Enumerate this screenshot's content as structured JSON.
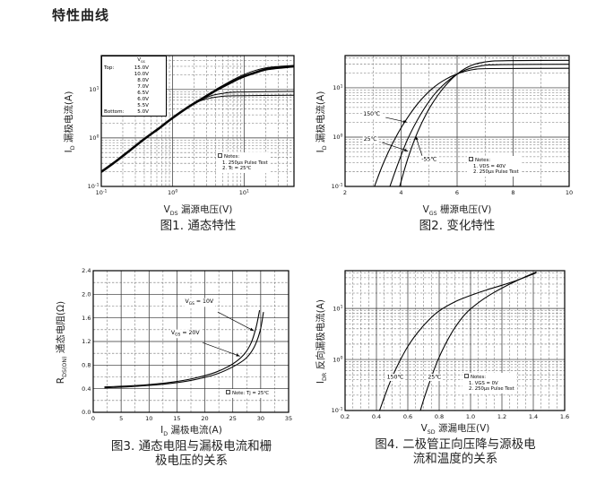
{
  "page": {
    "title": "特性曲线"
  },
  "chart_data": [
    {
      "type": "line",
      "title": "图1. 通态特性",
      "title_lines": [
        "图1. 通态特性"
      ],
      "xlabel": "VDS 漏源电压(V)",
      "xlabel_parts": {
        "pre": "V",
        "sub": "DS",
        "post": " 漏源电压(V)"
      },
      "ylabel": "ID 漏极电流(A)",
      "ylabel_parts": {
        "pre": "I",
        "sub": "D",
        "post": " 漏极电流(A)"
      },
      "x_scale": "log",
      "y_scale": "log",
      "xlim": [
        0.1,
        50
      ],
      "ylim": [
        0.1,
        50
      ],
      "x_tick_exps": [
        -1,
        0,
        1
      ],
      "y_tick_exps": [
        -1,
        0,
        1
      ],
      "grid": "log major solid, log minor dashed",
      "legend": {
        "header_parts": {
          "pre": "V",
          "sub": "GS"
        },
        "rows": [
          [
            "Top:",
            "15.0V"
          ],
          [
            "",
            "10.0V"
          ],
          [
            "",
            "8.0V"
          ],
          [
            "",
            "7.0V"
          ],
          [
            "",
            "6.5V"
          ],
          [
            "",
            "6.0V"
          ],
          [
            "",
            "5.5V"
          ],
          [
            "Bottom:",
            "5.0V"
          ]
        ]
      },
      "notes": [
        "Notes:",
        "1. 250μs Pulse Test",
        "2. Tc = 25℃"
      ],
      "series": [
        {
          "name": "VGS = 15.0V–6.0V (overlapping band)",
          "width": 2.6,
          "points": [
            [
              0.1,
              0.2
            ],
            [
              0.16,
              0.33
            ],
            [
              0.25,
              0.55
            ],
            [
              0.4,
              0.95
            ],
            [
              0.65,
              1.6
            ],
            [
              1.0,
              2.6
            ],
            [
              1.6,
              4.2
            ],
            [
              2.5,
              6.3
            ],
            [
              4,
              9.5
            ],
            [
              6,
              13
            ],
            [
              9,
              17.5
            ],
            [
              14,
              22
            ],
            [
              22,
              26.5
            ],
            [
              50,
              30
            ]
          ]
        },
        {
          "name": "VGS = 15.0V (upper edge)",
          "width": 1,
          "points": [
            [
              4,
              10
            ],
            [
              6,
              14
            ],
            [
              9,
              19
            ],
            [
              14,
              24.5
            ],
            [
              22,
              28.5
            ],
            [
              50,
              31.5
            ]
          ]
        },
        {
          "name": "VGS = 5.5V",
          "width": 1,
          "points": [
            [
              2.5,
              6.1
            ],
            [
              3.5,
              7.5
            ],
            [
              5,
              8.3
            ],
            [
              8,
              8.8
            ],
            [
              50,
              9.1
            ]
          ]
        },
        {
          "name": "VGS = 5.0V",
          "width": 1,
          "points": [
            [
              2.2,
              5.5
            ],
            [
              3,
              6.4
            ],
            [
              4.5,
              7.1
            ],
            [
              7,
              7.4
            ],
            [
              50,
              7.6
            ]
          ]
        }
      ],
      "annotations": []
    },
    {
      "type": "line",
      "title": "图2. 变化特性",
      "title_lines": [
        "图2. 变化特性"
      ],
      "xlabel": "VGS 栅源电压(V)",
      "xlabel_parts": {
        "pre": "V",
        "sub": "GS",
        "post": " 栅源电压(V)"
      },
      "ylabel": "ID 漏极电流(A)",
      "ylabel_parts": {
        "pre": "I",
        "sub": "D",
        "post": " 漏极电流(A)"
      },
      "x_scale": "linear",
      "y_scale": "log",
      "xlim": [
        2,
        10
      ],
      "x_step": 2,
      "x_minor": 1,
      "ylim": [
        0.1,
        45
      ],
      "y_tick_exps": [
        -1,
        0,
        1
      ],
      "x_ticks": [
        {
          "v": 2,
          "l": "2"
        },
        {
          "v": 4,
          "l": "4"
        },
        {
          "v": 6,
          "l": "6"
        },
        {
          "v": 8,
          "l": "8"
        },
        {
          "v": 10,
          "l": "10"
        }
      ],
      "notes": [
        "Notes:",
        "1. VDS = 40V",
        "2. 250μs Pulse Test"
      ],
      "series": [
        {
          "name": "150℃",
          "width": 1.1,
          "points": [
            [
              3.05,
              0.1
            ],
            [
              3.35,
              0.28
            ],
            [
              3.7,
              0.75
            ],
            [
              4.1,
              1.9
            ],
            [
              4.6,
              4.8
            ],
            [
              5.1,
              9.5
            ],
            [
              5.6,
              15
            ],
            [
              6.1,
              20
            ],
            [
              6.6,
              23.5
            ],
            [
              7.2,
              24.5
            ],
            [
              10,
              24.8
            ]
          ]
        },
        {
          "name": "25℃",
          "width": 1.1,
          "points": [
            [
              3.6,
              0.1
            ],
            [
              3.9,
              0.3
            ],
            [
              4.25,
              0.95
            ],
            [
              4.7,
              2.9
            ],
            [
              5.2,
              7.5
            ],
            [
              5.75,
              15
            ],
            [
              6.3,
              23
            ],
            [
              6.9,
              28
            ],
            [
              7.6,
              29.5
            ],
            [
              10,
              30
            ]
          ]
        },
        {
          "name": "-55℃",
          "width": 1.1,
          "points": [
            [
              3.95,
              0.1
            ],
            [
              4.25,
              0.38
            ],
            [
              4.6,
              1.3
            ],
            [
              5.05,
              4.2
            ],
            [
              5.55,
              10.5
            ],
            [
              6.05,
              20
            ],
            [
              6.55,
              29
            ],
            [
              7.1,
              34
            ],
            [
              7.8,
              35.5
            ],
            [
              10,
              36
            ]
          ]
        }
      ],
      "annotations": [
        {
          "text": "150℃",
          "tx": 2.95,
          "ty": 2.7,
          "arrow": [
            3.45,
            2.5,
            4.22,
            2.0
          ]
        },
        {
          "text": "25℃",
          "tx": 2.9,
          "ty": 0.85,
          "arrow": [
            3.32,
            0.78,
            4.25,
            0.52
          ]
        },
        {
          "text": "-55℃",
          "tx": 5.0,
          "ty": 0.33,
          "arrow": [
            4.75,
            0.42,
            4.52,
            1.05
          ]
        }
      ]
    },
    {
      "type": "line",
      "title": "图3. 通态电阻与漏极电流和栅极电压的关系",
      "title_lines": [
        "图3. 通态电阻与漏极电流和栅",
        "极电压的关系"
      ],
      "xlabel": "ID 漏极电流(A)",
      "xlabel_parts": {
        "pre": "I",
        "sub": "D",
        "post": " 漏极电流(A)"
      },
      "ylabel": "RDS(ON) 通态电阻(Ω)",
      "ylabel_parts": {
        "pre": "R",
        "sub": "DS(ON)",
        "post": " 通态电阻(Ω)"
      },
      "x_scale": "linear",
      "y_scale": "linear",
      "xlim": [
        0,
        35
      ],
      "x_step": 5,
      "x_minor": 2.5,
      "ylim": [
        0,
        2.4
      ],
      "y_step": 0.4,
      "y_minor": 0.2,
      "x_ticks": [
        {
          "v": 0,
          "l": "0"
        },
        {
          "v": 5,
          "l": "5"
        },
        {
          "v": 10,
          "l": "10"
        },
        {
          "v": 15,
          "l": "15"
        },
        {
          "v": 20,
          "l": "20"
        },
        {
          "v": 25,
          "l": "25"
        },
        {
          "v": 30,
          "l": "30"
        },
        {
          "v": 35,
          "l": "35"
        }
      ],
      "y_ticks": [
        {
          "v": 0,
          "l": "0.0"
        },
        {
          "v": 0.4,
          "l": "0.4"
        },
        {
          "v": 0.8,
          "l": "0.8"
        },
        {
          "v": 1.2,
          "l": "1.2"
        },
        {
          "v": 1.6,
          "l": "1.6"
        },
        {
          "v": 2.0,
          "l": "2.0"
        },
        {
          "v": 2.4,
          "l": "2.4"
        }
      ],
      "notes": [
        "Note: Tj = 25℃"
      ],
      "series": [
        {
          "name": "VGS = 10V",
          "width": 1.1,
          "points": [
            [
              2,
              0.43
            ],
            [
              6,
              0.445
            ],
            [
              10,
              0.47
            ],
            [
              14,
              0.51
            ],
            [
              18,
              0.575
            ],
            [
              22,
              0.68
            ],
            [
              25,
              0.82
            ],
            [
              27,
              0.98
            ],
            [
              28.3,
              1.18
            ],
            [
              29.2,
              1.45
            ],
            [
              29.8,
              1.73
            ]
          ]
        },
        {
          "name": "VGS = 20V",
          "width": 1.1,
          "points": [
            [
              2,
              0.415
            ],
            [
              6,
              0.43
            ],
            [
              10,
              0.455
            ],
            [
              14,
              0.49
            ],
            [
              18,
              0.55
            ],
            [
              22,
              0.645
            ],
            [
              25,
              0.77
            ],
            [
              27.3,
              0.91
            ],
            [
              28.8,
              1.1
            ],
            [
              29.9,
              1.38
            ],
            [
              30.5,
              1.7
            ]
          ]
        }
      ],
      "annotations": [
        {
          "pre": "V",
          "sub": "GS",
          "post": " = 10V",
          "tx": 19,
          "ty": 1.85,
          "arrow": [
            22.3,
            1.7,
            28.8,
            1.38
          ]
        },
        {
          "pre": "V",
          "sub": "GS",
          "post": " = 20V",
          "tx": 16.5,
          "ty": 1.32,
          "arrow": [
            19.6,
            1.18,
            26.3,
            0.95
          ]
        }
      ]
    },
    {
      "type": "line",
      "title": "图4. 二极管正向压降与源极电流和温度的关系",
      "title_lines": [
        "图4. 二极管正向压降与源极电",
        "流和温度的关系"
      ],
      "xlabel": "VSD 源漏电压(V)",
      "xlabel_parts": {
        "pre": "V",
        "sub": "SD",
        "post": " 源漏电压(V)"
      },
      "ylabel": "IDR 反向漏极电流(A)",
      "ylabel_parts": {
        "pre": "I",
        "sub": "DR",
        "post": " 反向漏极电流(A)"
      },
      "x_scale": "linear",
      "y_scale": "log",
      "xlim": [
        0.2,
        1.6
      ],
      "x_step": 0.2,
      "x_minor": 0.05,
      "ylim": [
        0.1,
        55
      ],
      "y_tick_exps": [
        -1,
        0,
        1
      ],
      "x_ticks": [
        {
          "v": 0.2,
          "l": "0.2"
        },
        {
          "v": 0.4,
          "l": "0.4"
        },
        {
          "v": 0.6,
          "l": "0.6"
        },
        {
          "v": 0.8,
          "l": "0.8"
        },
        {
          "v": 1.0,
          "l": "1.0"
        },
        {
          "v": 1.2,
          "l": "1.2"
        },
        {
          "v": 1.4,
          "l": "1.4"
        },
        {
          "v": 1.6,
          "l": "1.6"
        }
      ],
      "notes": [
        "Notes:",
        "1. VGS = 0V",
        "2. 250μs Pulse Test"
      ],
      "series": [
        {
          "name": "150℃",
          "width": 1.1,
          "points": [
            [
              0.42,
              0.1
            ],
            [
              0.46,
              0.22
            ],
            [
              0.5,
              0.45
            ],
            [
              0.55,
              0.95
            ],
            [
              0.6,
              1.8
            ],
            [
              0.66,
              3.3
            ],
            [
              0.73,
              5.8
            ],
            [
              0.8,
              9
            ],
            [
              0.9,
              13.5
            ],
            [
              1.0,
              18
            ],
            [
              1.1,
              23
            ],
            [
              1.2,
              28.5
            ],
            [
              1.3,
              36
            ],
            [
              1.42,
              50
            ]
          ]
        },
        {
          "name": "25℃",
          "width": 1.1,
          "points": [
            [
              0.68,
              0.1
            ],
            [
              0.71,
              0.2
            ],
            [
              0.75,
              0.45
            ],
            [
              0.79,
              0.95
            ],
            [
              0.84,
              2.0
            ],
            [
              0.9,
              4.2
            ],
            [
              0.97,
              8
            ],
            [
              1.05,
              13
            ],
            [
              1.13,
              19
            ],
            [
              1.22,
              27
            ],
            [
              1.32,
              38
            ],
            [
              1.42,
              52
            ]
          ]
        }
      ],
      "annotations": [
        {
          "text": "150℃",
          "tx": 0.52,
          "ty": 0.42
        },
        {
          "text": "25℃",
          "tx": 0.77,
          "ty": 0.42
        }
      ]
    }
  ]
}
